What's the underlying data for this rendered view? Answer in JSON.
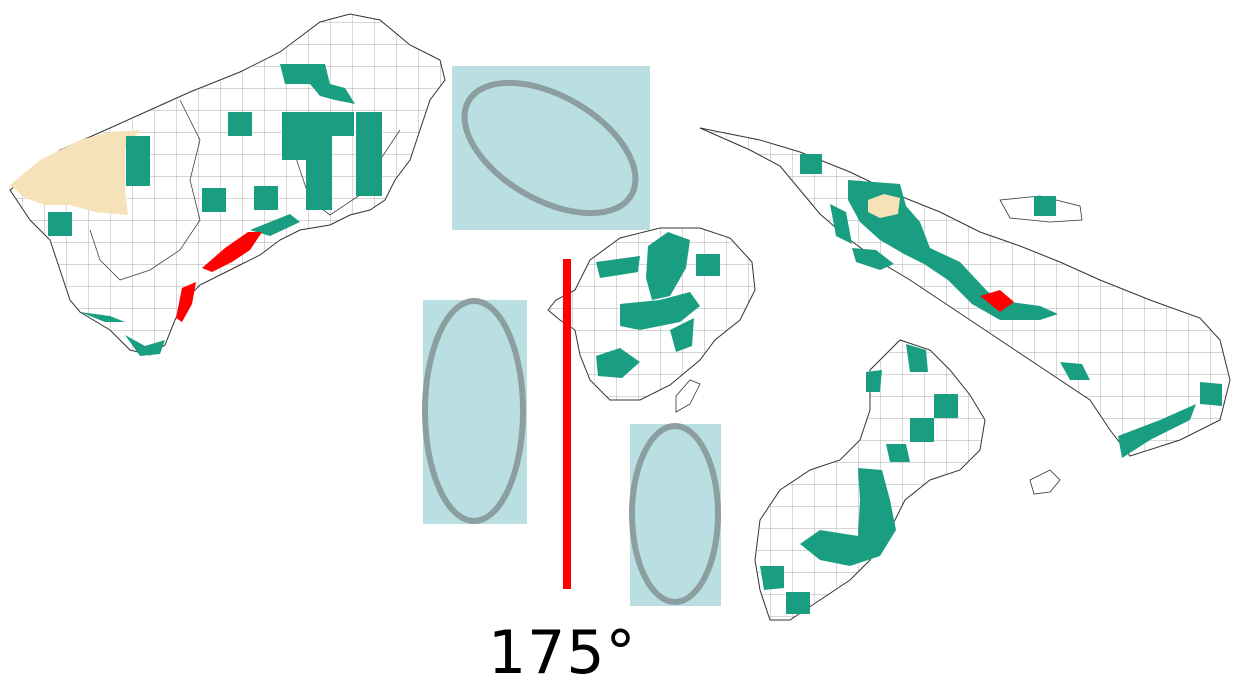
{
  "label": "175°",
  "colors": {
    "background": "#ffffff",
    "grid_fill": "#1a9e82",
    "highlight": "#ff0000",
    "sand": "#f5e2b8",
    "overlay_box": "#b9dfe3",
    "ellipse_stroke": "#8d9ea0",
    "coastline": "#333333",
    "meridian": "#ff0000"
  }
}
